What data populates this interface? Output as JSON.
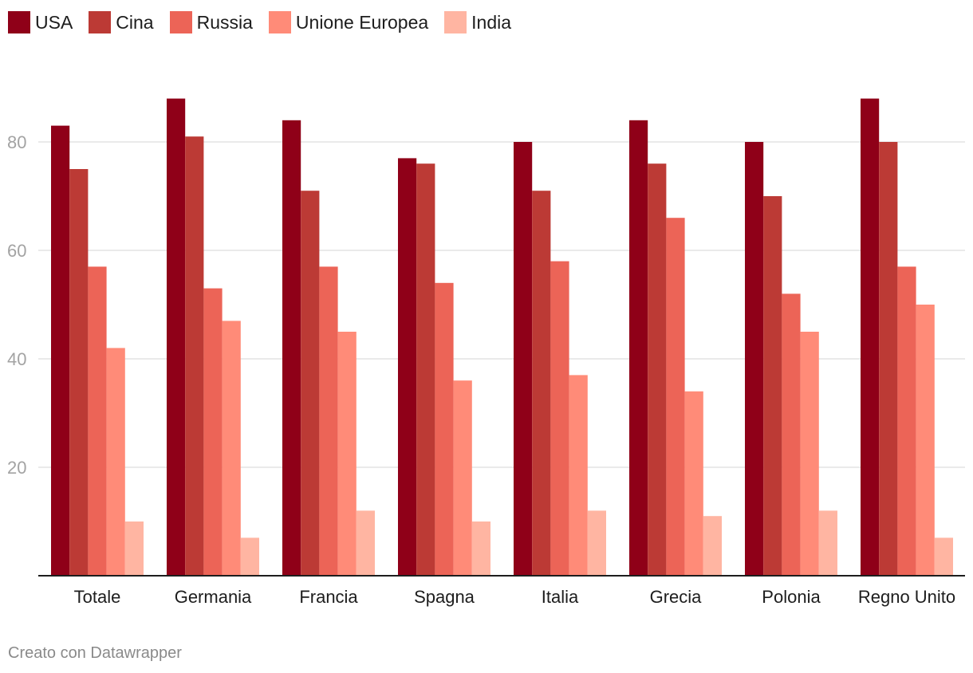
{
  "chart_data": {
    "type": "bar",
    "categories": [
      "Totale",
      "Germania",
      "Francia",
      "Spagna",
      "Italia",
      "Grecia",
      "Polonia",
      "Regno Unito"
    ],
    "series": [
      {
        "name": "USA",
        "color": "#8f0018",
        "values": [
          83,
          88,
          84,
          77,
          80,
          84,
          80,
          88
        ]
      },
      {
        "name": "Cina",
        "color": "#bc3a35",
        "values": [
          75,
          81,
          71,
          76,
          71,
          76,
          70,
          80
        ]
      },
      {
        "name": "Russia",
        "color": "#ec6457",
        "values": [
          57,
          53,
          57,
          54,
          58,
          66,
          52,
          57
        ]
      },
      {
        "name": "Unione Europea",
        "color": "#ff8b78",
        "values": [
          42,
          47,
          45,
          36,
          37,
          34,
          45,
          50
        ]
      },
      {
        "name": "India",
        "color": "#ffb5a2",
        "values": [
          10,
          7,
          12,
          10,
          12,
          11,
          12,
          7
        ]
      }
    ],
    "yticks": [
      "20",
      "40",
      "60",
      "80"
    ],
    "ylim": [
      0,
      90
    ],
    "grid": true,
    "legend": "top-left"
  },
  "credit": "Creato con Datawrapper"
}
